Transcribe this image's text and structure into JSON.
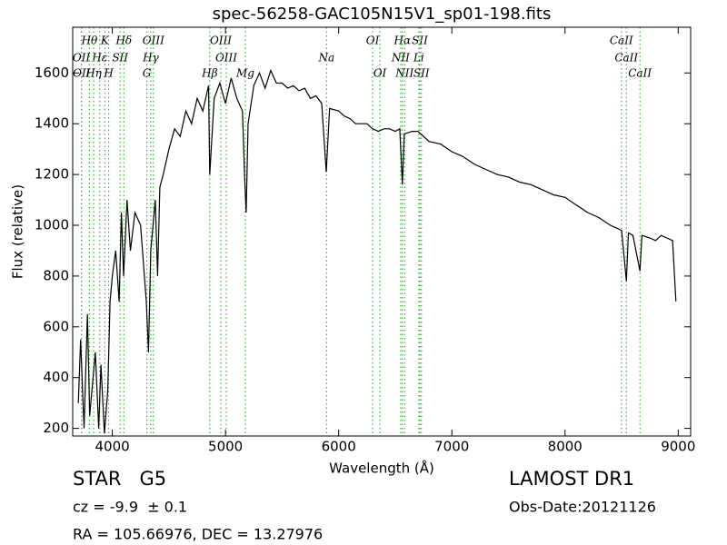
{
  "chart_data": {
    "type": "line",
    "title": "spec-56258-GAC105N15V1_sp01-198.fits",
    "x_label": "Wavelength (Å)",
    "y_label": "Flux (relative)",
    "xlim": [
      3650,
      9110
    ],
    "ylim": [
      170,
      1780
    ],
    "xticks": [
      4000,
      5000,
      6000,
      7000,
      8000,
      9000
    ],
    "yticks": [
      200,
      400,
      600,
      800,
      1000,
      1200,
      1400,
      1600
    ],
    "color": "#000000",
    "marker_color": "#33bb33",
    "line_markers": [
      [
        {
          "label": "Hθ",
          "wavelength": 3798
        },
        {
          "label": "K",
          "wavelength": 3934
        },
        {
          "label": "Hδ",
          "wavelength": 4102
        },
        {
          "label": "OIII",
          "wavelength": 4363
        },
        {
          "label": "OIII",
          "wavelength": 4959
        },
        {
          "label": "OI",
          "wavelength": 6300
        },
        {
          "label": "Hα",
          "wavelength": 6563
        },
        {
          "label": "SII",
          "wavelength": 6717
        },
        {
          "label": "CaII",
          "wavelength": 8498
        }
      ],
      [
        {
          "label": "OII",
          "wavelength": 3727
        },
        {
          "label": "Hε",
          "wavelength": 3889
        },
        {
          "label": "SII",
          "wavelength": 4069
        },
        {
          "label": "Hγ",
          "wavelength": 4340
        },
        {
          "label": "OIII",
          "wavelength": 5007
        },
        {
          "label": "Na",
          "wavelength": 5893
        },
        {
          "label": "NII",
          "wavelength": 6548
        },
        {
          "label": "Li",
          "wavelength": 6708
        },
        {
          "label": "CaII",
          "wavelength": 8542
        }
      ],
      [
        {
          "label": "OII",
          "wavelength": 3729
        },
        {
          "label": "Hη",
          "wavelength": 3835
        },
        {
          "label": "H",
          "wavelength": 3968
        },
        {
          "label": "G",
          "wavelength": 4305
        },
        {
          "label": "Hβ",
          "wavelength": 4861
        },
        {
          "label": "Mg",
          "wavelength": 5175
        },
        {
          "label": "OI",
          "wavelength": 6364
        },
        {
          "label": "NII",
          "wavelength": 6583
        },
        {
          "label": "SII",
          "wavelength": 6731
        },
        {
          "label": "CaII",
          "wavelength": 8662
        }
      ]
    ],
    "x": [
      3700,
      3720,
      3750,
      3780,
      3800,
      3850,
      3880,
      3900,
      3930,
      3960,
      3980,
      4000,
      4030,
      4060,
      4080,
      4100,
      4130,
      4160,
      4200,
      4250,
      4300,
      4320,
      4340,
      4380,
      4400,
      4420,
      4450,
      4500,
      4550,
      4600,
      4650,
      4700,
      4750,
      4800,
      4850,
      4861,
      4900,
      4950,
      5000,
      5050,
      5100,
      5150,
      5170,
      5183,
      5200,
      5250,
      5300,
      5350,
      5400,
      5450,
      5500,
      5550,
      5600,
      5650,
      5700,
      5750,
      5800,
      5850,
      5890,
      5920,
      6000,
      6050,
      6100,
      6150,
      6200,
      6250,
      6300,
      6350,
      6400,
      6450,
      6500,
      6540,
      6563,
      6580,
      6650,
      6700,
      6750,
      6800,
      6900,
      7000,
      7100,
      7200,
      7300,
      7400,
      7500,
      7600,
      7700,
      7800,
      7900,
      8000,
      8100,
      8200,
      8300,
      8400,
      8450,
      8500,
      8542,
      8560,
      8600,
      8662,
      8680,
      8750,
      8800,
      8850,
      8900,
      8950,
      8980
    ],
    "values": [
      300,
      550,
      200,
      650,
      250,
      500,
      200,
      450,
      180,
      350,
      700,
      800,
      900,
      700,
      1050,
      800,
      1100,
      900,
      1050,
      1000,
      700,
      500,
      900,
      1100,
      800,
      1150,
      1200,
      1300,
      1380,
      1350,
      1450,
      1400,
      1500,
      1450,
      1550,
      1200,
      1500,
      1560,
      1480,
      1580,
      1500,
      1450,
      1180,
      1050,
      1400,
      1550,
      1600,
      1540,
      1610,
      1560,
      1560,
      1540,
      1550,
      1530,
      1540,
      1500,
      1510,
      1480,
      1210,
      1460,
      1450,
      1430,
      1420,
      1400,
      1400,
      1400,
      1380,
      1370,
      1380,
      1380,
      1370,
      1380,
      1160,
      1360,
      1370,
      1370,
      1350,
      1330,
      1320,
      1290,
      1270,
      1240,
      1220,
      1200,
      1190,
      1170,
      1160,
      1140,
      1120,
      1110,
      1080,
      1050,
      1030,
      1000,
      990,
      980,
      780,
      970,
      960,
      820,
      960,
      950,
      940,
      960,
      950,
      940,
      700
    ]
  },
  "info": {
    "object": "STAR   G5",
    "redshift": "cz = -9.9  ± 0.1",
    "coordinates": "RA = 105.66976, DEC = 13.27976",
    "survey": "LAMOST DR1",
    "obs_date": "Obs-Date:20121126"
  }
}
